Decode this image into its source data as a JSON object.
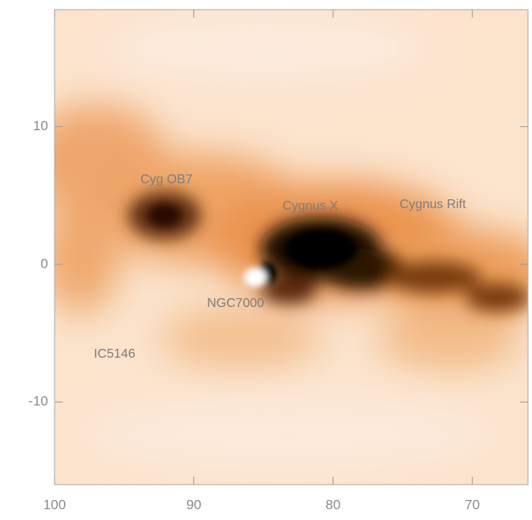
{
  "chart_data": {
    "type": "image",
    "xlim": [
      100,
      66
    ],
    "ylim": [
      -16,
      18.5
    ],
    "xticks": [
      100,
      90,
      80,
      70
    ],
    "yticks": [
      10,
      0,
      -10
    ],
    "annotations": [
      "Cyg OB7",
      "Cygnus X",
      "Cygnus Rift",
      "NGC7000",
      "IC5146"
    ]
  }
}
